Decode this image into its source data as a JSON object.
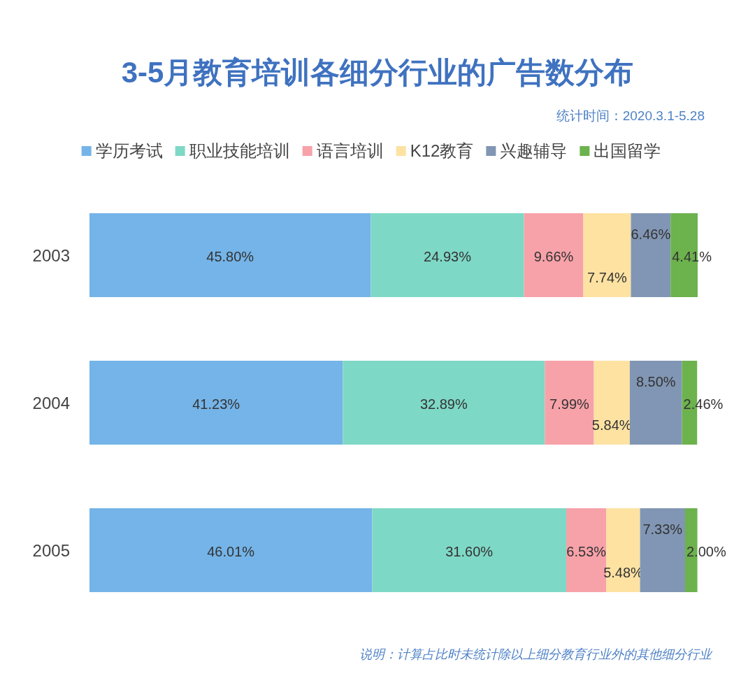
{
  "chart_data": {
    "type": "bar",
    "orientation": "horizontal",
    "stacked": true,
    "legend": "top",
    "title": "3-5月教育培训各细分行业的广告数分布",
    "subtitle": "统计时间：2020.3.1-5.28",
    "annotations": [
      "说明：计算占比时未统计除以上细分教育行业外的其他细分行业"
    ],
    "categories": [
      "2003",
      "2004",
      "2005"
    ],
    "series": [
      {
        "name": "学历考试",
        "color": "#74b4e8",
        "values": [
          45.8,
          41.23,
          46.01
        ],
        "value_labels": [
          "45.80%",
          "41.23%",
          "46.01%"
        ]
      },
      {
        "name": "职业技能培训",
        "color": "#7ed8c6",
        "values": [
          24.93,
          32.89,
          31.6
        ],
        "value_labels": [
          "24.93%",
          "32.89%",
          "31.60%"
        ]
      },
      {
        "name": "语言培训",
        "color": "#f7a2a9",
        "values": [
          9.66,
          7.99,
          6.53
        ],
        "value_labels": [
          "9.66%",
          "7.99%",
          "6.53%"
        ]
      },
      {
        "name": "K12教育",
        "color": "#fde2a2",
        "values": [
          7.74,
          5.84,
          5.48
        ],
        "value_labels": [
          "7.74%",
          "5.84%",
          "5.48%"
        ]
      },
      {
        "name": "兴趣辅导",
        "color": "#8196b4",
        "values": [
          6.46,
          8.5,
          7.33
        ],
        "value_labels": [
          "6.46%",
          "8.50%",
          "7.33%"
        ]
      },
      {
        "name": "出国留学",
        "color": "#6cb24d",
        "values": [
          4.41,
          2.46,
          2.0
        ],
        "value_labels": [
          "4.41%",
          "2.46%",
          "2.00%"
        ]
      }
    ]
  }
}
